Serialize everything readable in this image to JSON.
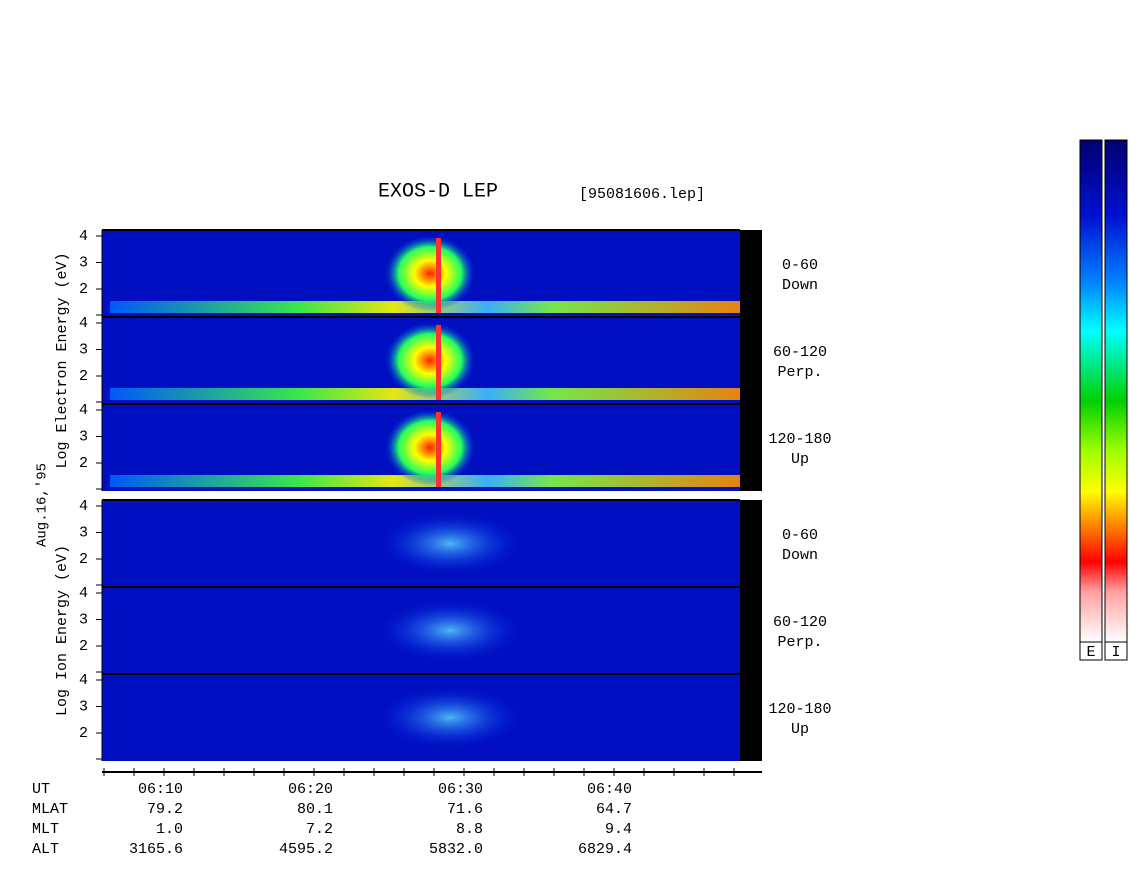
{
  "title": "EXOS-D LEP",
  "file": "[95081606.lep]",
  "date": "Aug.16,'95",
  "energy_ticks": [
    4,
    3,
    2
  ],
  "groups": [
    {
      "label": "Log Electron Energy (eV)",
      "channels": [
        {
          "pitch": "0-60",
          "direction": "Down"
        },
        {
          "pitch": "60-120",
          "direction": "Perp."
        },
        {
          "pitch": "120-180",
          "direction": "Up"
        }
      ]
    },
    {
      "label": "Log Ion Energy (eV)",
      "channels": [
        {
          "pitch": "0-60",
          "direction": "Down"
        },
        {
          "pitch": "60-120",
          "direction": "Perp."
        },
        {
          "pitch": "120-180",
          "direction": "Up"
        }
      ]
    }
  ],
  "rows": [
    {
      "label": "UT",
      "values": [
        "06:10",
        "06:20",
        "06:30",
        "06:40"
      ]
    },
    {
      "label": "MLAT",
      "values": [
        "79.2",
        "80.1",
        "71.6",
        "64.7"
      ]
    },
    {
      "label": "MLT",
      "values": [
        "1.0",
        "7.2",
        "8.8",
        "9.4"
      ]
    },
    {
      "label": "ALT",
      "values": [
        "3165.6",
        "4595.2",
        "5832.0",
        "6829.4"
      ]
    }
  ],
  "colorbars": [
    "E",
    "I"
  ]
}
